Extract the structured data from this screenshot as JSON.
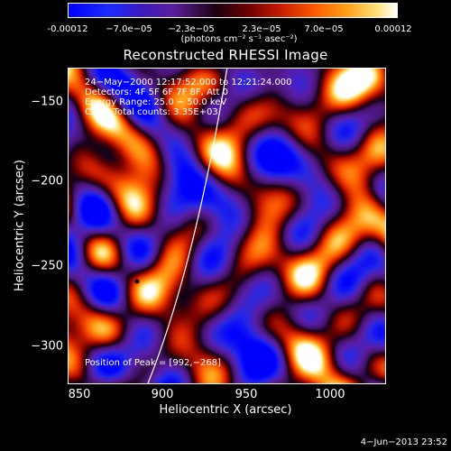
{
  "colorbar": {
    "ticks": [
      "-0.00012",
      "−7.0e−05",
      "−2.3e−05",
      "2.3e−05",
      "7.0e−05",
      "0.00012"
    ],
    "unit_label": "(photons cm⁻² s⁻¹ asec⁻²)"
  },
  "title": "Reconstructed RHESSI Image",
  "annotations": {
    "time_range": "24−May−2000 12:17:52.000 to 12:21:24.000",
    "detectors": "Detectors: 4F 5F 6F 7F 8F, Att 0",
    "energy_range": "Energy Range: 25.0 − 50.0 keV",
    "clean_counts": "Clean    Total counts: 3.35E+03",
    "peak_position": "Position of Peak = [992,−268]"
  },
  "axes": {
    "xlabel": "Heliocentric X (arcsec)",
    "ylabel": "Heliocentric Y (arcsec)",
    "x_ticks": [
      "850",
      "900",
      "950",
      "1000"
    ],
    "y_ticks": [
      "−150",
      "−200",
      "−250",
      "−300"
    ],
    "xlim": [
      843,
      1032
    ],
    "ylim": [
      -322,
      -128
    ]
  },
  "footer": "4−Jun−2013 23:52"
}
